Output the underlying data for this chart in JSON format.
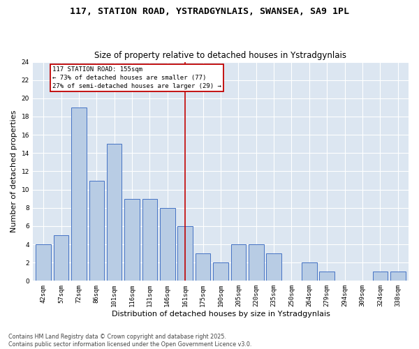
{
  "title_line1": "117, STATION ROAD, YSTRADGYNLAIS, SWANSEA, SA9 1PL",
  "title_line2": "Size of property relative to detached houses in Ystradgynlais",
  "xlabel": "Distribution of detached houses by size in Ystradgynlais",
  "ylabel": "Number of detached properties",
  "categories": [
    "42sqm",
    "57sqm",
    "72sqm",
    "86sqm",
    "101sqm",
    "116sqm",
    "131sqm",
    "146sqm",
    "161sqm",
    "175sqm",
    "190sqm",
    "205sqm",
    "220sqm",
    "235sqm",
    "250sqm",
    "264sqm",
    "279sqm",
    "294sqm",
    "309sqm",
    "324sqm",
    "338sqm"
  ],
  "values": [
    4,
    5,
    19,
    11,
    15,
    9,
    9,
    8,
    6,
    3,
    2,
    4,
    4,
    3,
    0,
    2,
    1,
    0,
    0,
    1,
    1
  ],
  "bar_color": "#b8cce4",
  "bar_edge_color": "#4472c4",
  "background_color": "#dce6f1",
  "vline_x": 8,
  "vline_color": "#c00000",
  "annotation_text": "117 STATION ROAD: 155sqm\n← 73% of detached houses are smaller (77)\n27% of semi-detached houses are larger (29) →",
  "annotation_box_color": "#c00000",
  "ylim": [
    0,
    24
  ],
  "yticks": [
    0,
    2,
    4,
    6,
    8,
    10,
    12,
    14,
    16,
    18,
    20,
    22,
    24
  ],
  "footer_text": "Contains HM Land Registry data © Crown copyright and database right 2025.\nContains public sector information licensed under the Open Government Licence v3.0.",
  "title_fontsize": 9.5,
  "subtitle_fontsize": 8.5,
  "axis_label_fontsize": 8,
  "tick_fontsize": 6.5,
  "annotation_fontsize": 6.5,
  "footer_fontsize": 5.8
}
